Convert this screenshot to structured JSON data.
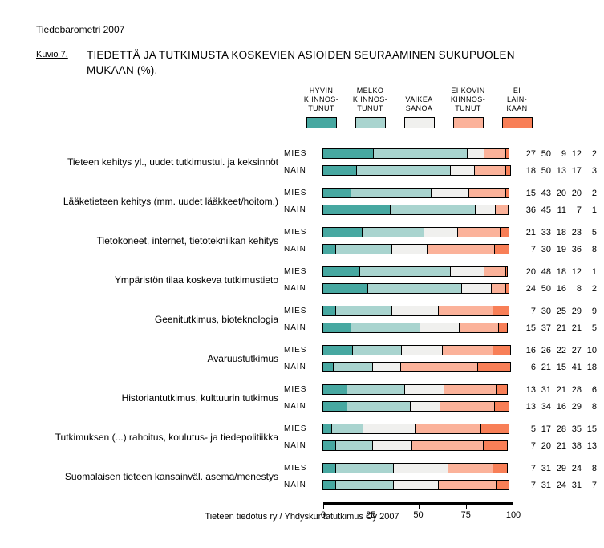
{
  "header": {
    "title": "Tiedebarometri 2007",
    "figure_label": "Kuvio 7.",
    "caption": "TIEDETTÄ JA TUTKIMUSTA KOSKEVIEN ASIOIDEN SEURAAMINEN SUKUPUOLEN MUKAAN (%)."
  },
  "footer": {
    "source": "Tieteen tiedotus ry / Yhdyskuntatutkimus Oy 2007"
  },
  "chart_data": {
    "type": "bar",
    "orientation": "horizontal",
    "stacked": true,
    "unit": "%",
    "xlim": [
      0,
      100
    ],
    "x_ticks": [
      0,
      25,
      50,
      75,
      100
    ],
    "grid": false,
    "legend_position": "top",
    "series_colors": [
      "#47A8A1",
      "#A9D4CF",
      "#F0F0EE",
      "#FBB29A",
      "#F87F57"
    ],
    "legend": [
      {
        "label": "HYVIN KIINNOSTUNUT",
        "lines": [
          "HYVIN",
          "KIINNOS-",
          "TUNUT"
        ],
        "color": "#47A8A1"
      },
      {
        "label": "MELKO KIINNOSTUNUT",
        "lines": [
          "MELKO",
          "KIINNOS-",
          "TUNUT"
        ],
        "color": "#A9D4CF"
      },
      {
        "label": "VAIKEA SANOA",
        "lines": [
          "VAIKEA",
          "SANOA"
        ],
        "color": "#F0F0EE"
      },
      {
        "label": "EI KOVIN KIINNOSTUNUT",
        "lines": [
          "EI KOVIN",
          "KIINNOS-",
          "TUNUT"
        ],
        "color": "#FBB29A"
      },
      {
        "label": "EI LAINKAAN",
        "lines": [
          "EI",
          "LAIN-",
          "KAAN"
        ],
        "color": "#F87F57"
      }
    ],
    "row_labels": [
      "MIES",
      "NAIN"
    ],
    "groups": [
      {
        "category": "Tieteen kehitys yl., uudet tutkimustul. ja keksinnöt",
        "rows": [
          {
            "gender": "MIES",
            "values": [
              27,
              50,
              9,
              12,
              2
            ]
          },
          {
            "gender": "NAIN",
            "values": [
              18,
              50,
              13,
              17,
              3
            ]
          }
        ]
      },
      {
        "category": "Lääketieteen kehitys (mm. uudet lääkkeet/hoitom.)",
        "rows": [
          {
            "gender": "MIES",
            "values": [
              15,
              43,
              20,
              20,
              2
            ]
          },
          {
            "gender": "NAIN",
            "values": [
              36,
              45,
              11,
              7,
              1
            ]
          }
        ]
      },
      {
        "category": "Tietokoneet, internet, tietotekniikan kehitys",
        "rows": [
          {
            "gender": "MIES",
            "values": [
              21,
              33,
              18,
              23,
              5
            ]
          },
          {
            "gender": "NAIN",
            "values": [
              7,
              30,
              19,
              36,
              8
            ]
          }
        ]
      },
      {
        "category": "Ympäristön tilaa koskeva tutkimustieto",
        "rows": [
          {
            "gender": "MIES",
            "values": [
              20,
              48,
              18,
              12,
              1
            ]
          },
          {
            "gender": "NAIN",
            "values": [
              24,
              50,
              16,
              8,
              2
            ]
          }
        ]
      },
      {
        "category": "Geenitutkimus, bioteknologia",
        "rows": [
          {
            "gender": "MIES",
            "values": [
              7,
              30,
              25,
              29,
              9
            ]
          },
          {
            "gender": "NAIN",
            "values": [
              15,
              37,
              21,
              21,
              5
            ]
          }
        ]
      },
      {
        "category": "Avaruustutkimus",
        "rows": [
          {
            "gender": "MIES",
            "values": [
              16,
              26,
              22,
              27,
              10
            ]
          },
          {
            "gender": "NAIN",
            "values": [
              6,
              21,
              15,
              41,
              18
            ]
          }
        ]
      },
      {
        "category": "Historiantutkimus, kulttuurin tutkimus",
        "rows": [
          {
            "gender": "MIES",
            "values": [
              13,
              31,
              21,
              28,
              6
            ]
          },
          {
            "gender": "NAIN",
            "values": [
              13,
              34,
              16,
              29,
              8
            ]
          }
        ]
      },
      {
        "category": "Tutkimuksen (...) rahoitus, koulutus- ja tiedepolitiikka",
        "rows": [
          {
            "gender": "MIES",
            "values": [
              5,
              17,
              28,
              35,
              15
            ]
          },
          {
            "gender": "NAIN",
            "values": [
              7,
              20,
              21,
              38,
              13
            ]
          }
        ]
      },
      {
        "category": "Suomalaisen tieteen kansainväl. asema/menestys",
        "rows": [
          {
            "gender": "MIES",
            "values": [
              7,
              31,
              29,
              24,
              8
            ]
          },
          {
            "gender": "NAIN",
            "values": [
              7,
              31,
              24,
              31,
              7
            ]
          }
        ]
      }
    ]
  }
}
